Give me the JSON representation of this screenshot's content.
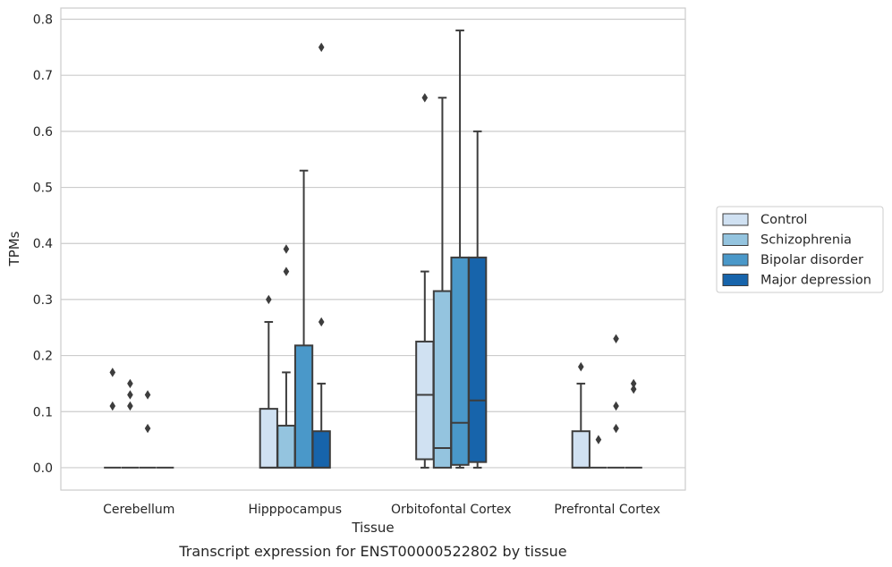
{
  "caption": "Transcript expression for ENST00000522802 by tissue",
  "chart_data": {
    "type": "box",
    "title": "",
    "xlabel": "Tissue",
    "ylabel": "TPMs",
    "ylim": [
      -0.04,
      0.82
    ],
    "yticks": [
      0.0,
      0.1,
      0.2,
      0.3,
      0.4,
      0.5,
      0.6,
      0.7,
      0.8
    ],
    "ytick_labels": [
      "0.0",
      "0.1",
      "0.2",
      "0.3",
      "0.4",
      "0.5",
      "0.6",
      "0.7",
      "0.8"
    ],
    "grid": "horizontal",
    "legend_position": "right",
    "categories": [
      "Cerebellum",
      "Hipppocampus",
      "Orbitofontal Cortex",
      "Prefrontal Cortex"
    ],
    "series": [
      {
        "name": "Control",
        "color": "#d0e1f2",
        "boxes": [
          {
            "q1": 0,
            "median": 0,
            "q3": 0,
            "whisker_low": 0,
            "whisker_high": 0,
            "outliers": [
              0.17,
              0.11
            ]
          },
          {
            "q1": 0,
            "median": 0,
            "q3": 0.105,
            "whisker_low": 0,
            "whisker_high": 0.26,
            "outliers": [
              0.3
            ]
          },
          {
            "q1": 0.015,
            "median": 0.13,
            "q3": 0.225,
            "whisker_low": 0,
            "whisker_high": 0.35,
            "outliers": [
              0.66
            ]
          },
          {
            "q1": 0,
            "median": 0,
            "q3": 0.065,
            "whisker_low": 0,
            "whisker_high": 0.15,
            "outliers": [
              0.18
            ]
          }
        ]
      },
      {
        "name": "Schizophrenia",
        "color": "#94c4df",
        "boxes": [
          {
            "q1": 0,
            "median": 0,
            "q3": 0,
            "whisker_low": 0,
            "whisker_high": 0,
            "outliers": [
              0.15,
              0.13,
              0.11
            ]
          },
          {
            "q1": 0,
            "median": 0,
            "q3": 0.075,
            "whisker_low": 0,
            "whisker_high": 0.17,
            "outliers": [
              0.39,
              0.35
            ]
          },
          {
            "q1": 0,
            "median": 0.035,
            "q3": 0.315,
            "whisker_low": 0,
            "whisker_high": 0.66,
            "outliers": []
          },
          {
            "q1": 0,
            "median": 0,
            "q3": 0,
            "whisker_low": 0,
            "whisker_high": 0,
            "outliers": [
              0.05
            ]
          }
        ]
      },
      {
        "name": "Bipolar disorder",
        "color": "#4a98c9",
        "boxes": [
          {
            "q1": 0,
            "median": 0,
            "q3": 0,
            "whisker_low": 0,
            "whisker_high": 0,
            "outliers": [
              0.13,
              0.07
            ]
          },
          {
            "q1": 0,
            "median": 0,
            "q3": 0.218,
            "whisker_low": 0,
            "whisker_high": 0.53,
            "outliers": []
          },
          {
            "q1": 0.005,
            "median": 0.08,
            "q3": 0.375,
            "whisker_low": 0,
            "whisker_high": 0.78,
            "outliers": []
          },
          {
            "q1": 0,
            "median": 0,
            "q3": 0,
            "whisker_low": 0,
            "whisker_high": 0,
            "outliers": [
              0.23,
              0.11,
              0.07
            ]
          }
        ]
      },
      {
        "name": "Major depression",
        "color": "#1764ab",
        "boxes": [
          {
            "q1": 0,
            "median": 0,
            "q3": 0,
            "whisker_low": 0,
            "whisker_high": 0,
            "outliers": []
          },
          {
            "q1": 0,
            "median": 0,
            "q3": 0.065,
            "whisker_low": 0,
            "whisker_high": 0.15,
            "outliers": [
              0.75,
              0.26
            ]
          },
          {
            "q1": 0.01,
            "median": 0.12,
            "q3": 0.375,
            "whisker_low": 0,
            "whisker_high": 0.6,
            "outliers": []
          },
          {
            "q1": 0,
            "median": 0,
            "q3": 0,
            "whisker_low": 0,
            "whisker_high": 0,
            "outliers": [
              0.15,
              0.14
            ]
          }
        ]
      }
    ]
  }
}
